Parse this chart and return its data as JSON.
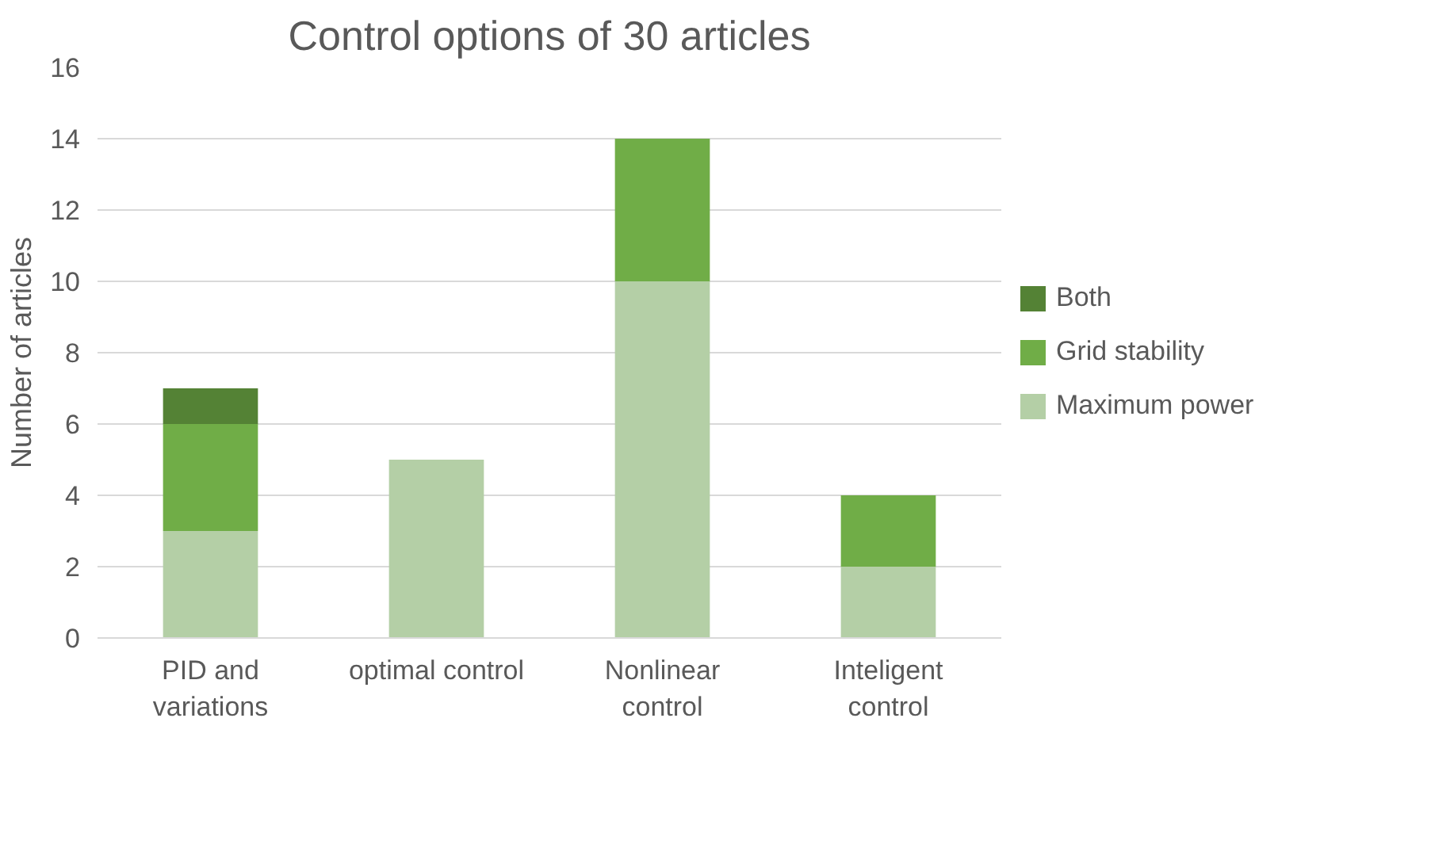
{
  "chart_data": {
    "type": "bar",
    "title": "Control options of 30 articles",
    "ylabel": "Number of articles",
    "categories": [
      "PID and variations",
      "optimal control",
      "Nonlinear control",
      "Inteligent control"
    ],
    "stacked": true,
    "series": [
      {
        "name": "Maximum power",
        "color": "#b4cfa6",
        "values": [
          3,
          5,
          10,
          2
        ]
      },
      {
        "name": "Grid stability",
        "color": "#70ad47",
        "values": [
          3,
          0,
          4,
          2
        ]
      },
      {
        "name": "Both",
        "color": "#548235",
        "values": [
          1,
          0,
          0,
          0
        ]
      }
    ],
    "ylim": [
      0,
      16
    ],
    "yticks": [
      0,
      2,
      4,
      6,
      8,
      10,
      12,
      14,
      16
    ],
    "grid": "y",
    "legend": "right"
  }
}
